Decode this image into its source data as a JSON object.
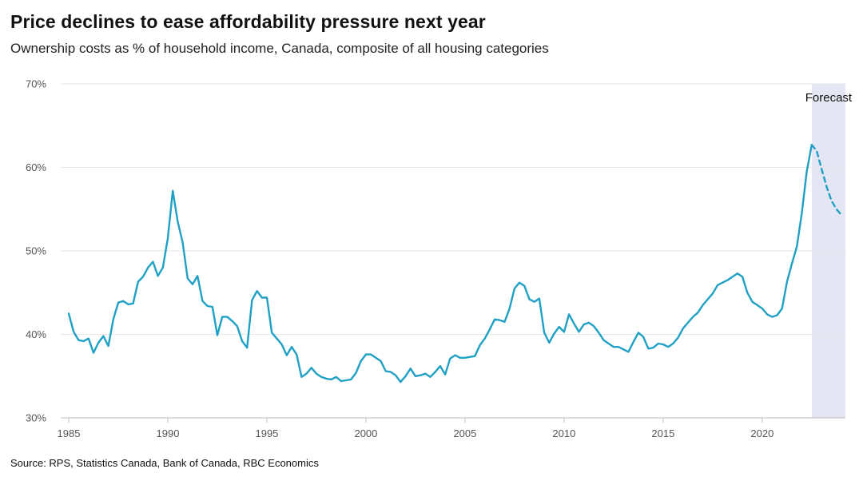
{
  "title": "Price declines to ease affordability pressure next year",
  "subtitle": "Ownership costs as % of household income, Canada, composite of all housing categories",
  "source": "Source: RPS, Statistics Canada, Bank of Canada, RBC Economics",
  "colors": {
    "line": "#1fa0c4",
    "forecast_band": "#e4e7f3",
    "grid": "#e6e6e6",
    "axis_text": "#555555"
  },
  "chart_data": {
    "type": "line",
    "title": "Price declines to ease affordability pressure next year",
    "subtitle": "Ownership costs as % of household income, Canada, composite of all housing categories",
    "xlabel": "",
    "ylabel": "",
    "xlim": [
      1985,
      2024.2
    ],
    "ylim": [
      30,
      70
    ],
    "x_ticks": [
      1985,
      1990,
      1995,
      2000,
      2005,
      2010,
      2015,
      2020
    ],
    "x_tick_labels": [
      "1985",
      "1990",
      "1995",
      "2000",
      "2005",
      "2010",
      "2015",
      "2020"
    ],
    "y_ticks": [
      30,
      40,
      50,
      60,
      70
    ],
    "y_tick_labels": [
      "30%",
      "40%",
      "50%",
      "60%",
      "70%"
    ],
    "grid": "horizontal",
    "forecast_region": {
      "label": "Forecast",
      "start": 2022.5,
      "end": 2024.2
    },
    "series": [
      {
        "style": "solid",
        "x": [
          1985.0,
          1985.25,
          1985.5,
          1985.75,
          1986.0,
          1986.25,
          1986.5,
          1986.75,
          1987.0,
          1987.25,
          1987.5,
          1987.75,
          1988.0,
          1988.25,
          1988.5,
          1988.75,
          1989.0,
          1989.25,
          1989.5,
          1989.75,
          1990.0,
          1990.25,
          1990.5,
          1990.75,
          1991.0,
          1991.25,
          1991.5,
          1991.75,
          1992.0,
          1992.25,
          1992.5,
          1992.75,
          1993.0,
          1993.25,
          1993.5,
          1993.75,
          1994.0,
          1994.25,
          1994.5,
          1994.75,
          1995.0,
          1995.25,
          1995.5,
          1995.75,
          1996.0,
          1996.25,
          1996.5,
          1996.75,
          1997.0,
          1997.25,
          1997.5,
          1997.75,
          1998.0,
          1998.25,
          1998.5,
          1998.75,
          1999.0,
          1999.25,
          1999.5,
          1999.75,
          2000.0,
          2000.25,
          2000.5,
          2000.75,
          2001.0,
          2001.25,
          2001.5,
          2001.75,
          2002.0,
          2002.25,
          2002.5,
          2002.75,
          2003.0,
          2003.25,
          2003.5,
          2003.75,
          2004.0,
          2004.25,
          2004.5,
          2004.75,
          2005.0,
          2005.25,
          2005.5,
          2005.75,
          2006.0,
          2006.25,
          2006.5,
          2006.75,
          2007.0,
          2007.25,
          2007.5,
          2007.75,
          2008.0,
          2008.25,
          2008.5,
          2008.75,
          2009.0,
          2009.25,
          2009.5,
          2009.75,
          2010.0,
          2010.25,
          2010.5,
          2010.75,
          2011.0,
          2011.25,
          2011.5,
          2011.75,
          2012.0,
          2012.25,
          2012.5,
          2012.75,
          2013.0,
          2013.25,
          2013.5,
          2013.75,
          2014.0,
          2014.25,
          2014.5,
          2014.75,
          2015.0,
          2015.25,
          2015.5,
          2015.75,
          2016.0,
          2016.25,
          2016.5,
          2016.75,
          2017.0,
          2017.25,
          2017.5,
          2017.75,
          2018.0,
          2018.25,
          2018.5,
          2018.75,
          2019.0,
          2019.25,
          2019.5,
          2019.75,
          2020.0,
          2020.25,
          2020.5,
          2020.75,
          2021.0,
          2021.25,
          2021.5,
          2021.75,
          2022.0,
          2022.25,
          2022.5
        ],
        "values": [
          42.5,
          40.3,
          39.3,
          39.2,
          39.5,
          37.8,
          39.0,
          39.8,
          38.6,
          41.8,
          43.8,
          44.0,
          43.6,
          43.7,
          46.3,
          46.9,
          48.0,
          48.7,
          47.0,
          48.0,
          51.5,
          57.2,
          53.5,
          51.0,
          46.7,
          46.0,
          47.0,
          44.0,
          43.4,
          43.3,
          39.9,
          42.1,
          42.1,
          41.6,
          41.0,
          39.2,
          38.4,
          44.1,
          45.2,
          44.4,
          44.4,
          40.2,
          39.5,
          38.8,
          37.5,
          38.5,
          37.6,
          34.9,
          35.3,
          36.0,
          35.3,
          34.9,
          34.7,
          34.6,
          34.9,
          34.4,
          34.5,
          34.6,
          35.4,
          36.8,
          37.6,
          37.6,
          37.2,
          36.8,
          35.6,
          35.5,
          35.1,
          34.3,
          35.0,
          35.9,
          35.0,
          35.1,
          35.3,
          34.9,
          35.5,
          36.2,
          35.2,
          37.1,
          37.5,
          37.2,
          37.2,
          37.3,
          37.4,
          38.7,
          39.5,
          40.6,
          41.8,
          41.7,
          41.5,
          43.1,
          45.5,
          46.2,
          45.8,
          44.2,
          43.9,
          44.3,
          40.2,
          39.0,
          40.1,
          40.9,
          40.3,
          42.4,
          41.3,
          40.3,
          41.2,
          41.4,
          41.0,
          40.2,
          39.3,
          38.9,
          38.5,
          38.5,
          38.2,
          37.9,
          39.1,
          40.2,
          39.7,
          38.3,
          38.4,
          38.9,
          38.8,
          38.5,
          38.9,
          39.6,
          40.7,
          41.4,
          42.1,
          42.6,
          43.5,
          44.2,
          44.9,
          45.9,
          46.2,
          46.5,
          46.9,
          47.3,
          46.9,
          45.0,
          43.9,
          43.5,
          43.1,
          42.4,
          42.1,
          42.3,
          43.1,
          46.3,
          48.5,
          50.5,
          54.5,
          59.5,
          62.7
        ]
      },
      {
        "style": "dashed",
        "x": [
          2022.5,
          2022.75,
          2023.0,
          2023.25,
          2023.5,
          2023.75,
          2024.0
        ],
        "values": [
          62.7,
          62.0,
          59.8,
          57.7,
          56.0,
          55.0,
          54.3
        ]
      }
    ]
  }
}
